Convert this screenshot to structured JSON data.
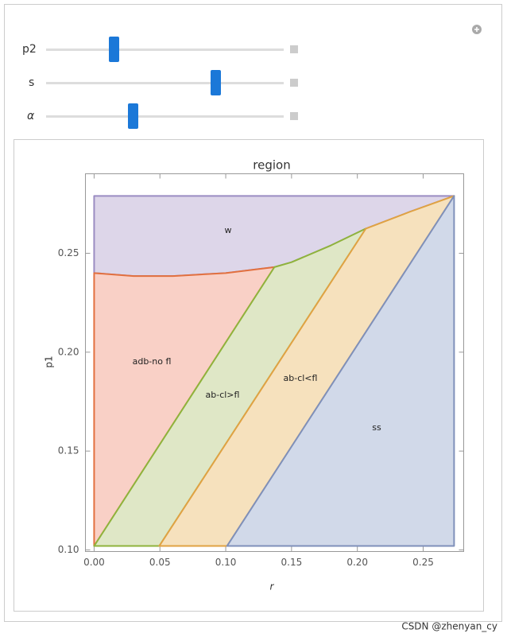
{
  "controls": [
    {
      "label": "p2"
    },
    {
      "label": "s"
    },
    {
      "label": "α"
    }
  ],
  "chart_data": {
    "type": "region",
    "title": "region",
    "x_label": "r",
    "y_label": "p1",
    "xlim": [
      -0.0066,
      0.2808
    ],
    "ylim": [
      0.0992,
      0.2902
    ],
    "xticks": [
      {
        "value": 0,
        "label": "0.00"
      },
      0.05,
      {
        "value": 0.1,
        "label": "0.10"
      },
      0.15,
      {
        "value": 0.2,
        "label": "0.20"
      },
      0.25
    ],
    "yticks": [
      {
        "value": 0.1,
        "label": "0.10"
      },
      0.15,
      {
        "value": 0.2,
        "label": "0.20"
      },
      0.25
    ],
    "regions": [
      {
        "name": "w",
        "color": "#ddd6e9",
        "stroke": "#9a8cc2",
        "x": [
          0,
          0,
          0.2735,
          0.24,
          0.2065,
          0.18,
          0.15,
          0.137,
          0.1,
          0.06,
          0.03
        ],
        "y": [
          0.24,
          0.279,
          0.279,
          0.271,
          0.2625,
          0.254,
          0.2455,
          0.243,
          0.24,
          0.2385,
          0.2385
        ]
      },
      {
        "name": "adb-no fl",
        "color": "#f9d0c6",
        "stroke": "#e2703f",
        "x": [
          0,
          0,
          0.03,
          0.06,
          0.1,
          0.137
        ],
        "y": [
          0.102,
          0.24,
          0.2385,
          0.2385,
          0.24,
          0.243
        ]
      },
      {
        "name": "ab-cl>fl",
        "color": "#dfe7c6",
        "stroke": "#8fb33c",
        "x": [
          0,
          0.137,
          0.15,
          0.18,
          0.2065,
          0.0495
        ],
        "y": [
          0.102,
          0.243,
          0.2455,
          0.254,
          0.2625,
          0.102
        ]
      },
      {
        "name": "ab-cl<fl",
        "color": "#f6e1bd",
        "stroke": "#e0a243",
        "x": [
          0.0495,
          0.2065,
          0.24,
          0.2735,
          0.101
        ],
        "y": [
          0.102,
          0.2625,
          0.271,
          0.279,
          0.102
        ]
      },
      {
        "name": "ss",
        "color": "#d1d9e9",
        "stroke": "#7f90ba",
        "x": [
          0.101,
          0.2735,
          0.2735
        ],
        "y": [
          0.102,
          0.279,
          0.102
        ]
      }
    ]
  },
  "watermark": "CSDN @zhenyan_cy"
}
